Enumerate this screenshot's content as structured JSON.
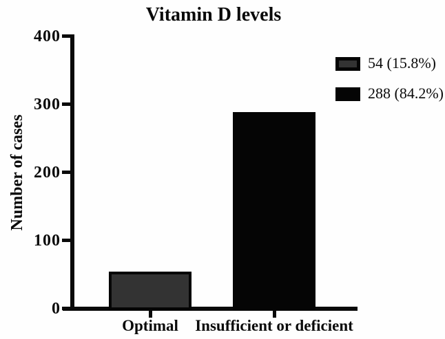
{
  "chart_data": {
    "type": "bar",
    "title": "Vitamin D levels",
    "ylabel": "Number of cases",
    "xlabel": "",
    "categories": [
      "Optimal",
      "Insufficient or deficient"
    ],
    "values": [
      54,
      288
    ],
    "bar_colors": [
      "#333333",
      "#050505"
    ],
    "ylim": [
      0,
      400
    ],
    "yticks": [
      0,
      100,
      200,
      300,
      400
    ],
    "grid": false,
    "legend": {
      "position": "top-right",
      "entries": [
        {
          "label": "54 (15.8%)",
          "color": "#333333"
        },
        {
          "label": "288 (84.2%)",
          "color": "#050505"
        }
      ]
    },
    "axis_color": "#0a0a0a",
    "background_color": "#fefefe"
  }
}
